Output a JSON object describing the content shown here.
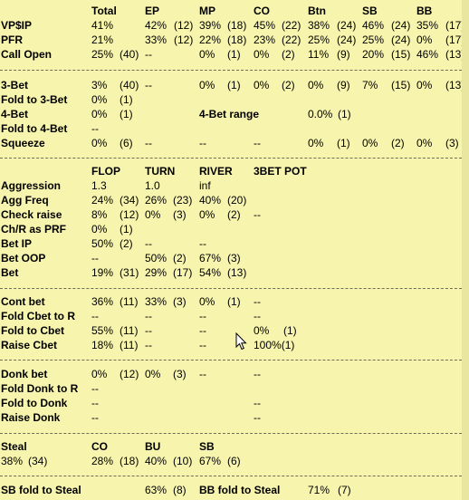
{
  "positions": {
    "headers": [
      "Total",
      "EP",
      "MP",
      "CO",
      "Btn",
      "SB",
      "BB"
    ],
    "rows": [
      {
        "label": "VP$IP",
        "cells": [
          "41%",
          "42%",
          "(12)",
          "39%",
          "(18)",
          "45%",
          "(22)",
          "38%",
          "(24)",
          "46%",
          "(24)",
          "35%",
          "(17)"
        ]
      },
      {
        "label": "PFR",
        "cells": [
          "21%",
          "33%",
          "(12)",
          "22%",
          "(18)",
          "23%",
          "(22)",
          "25%",
          "(24)",
          "25%",
          "(24)",
          "0%",
          "(17)"
        ]
      },
      {
        "label": "Call Open",
        "cells": [
          "25%",
          "(40)",
          "--",
          "0%",
          "(1)",
          "0%",
          "(2)",
          "11%",
          "(9)",
          "20%",
          "(15)",
          "46%",
          "(13)"
        ]
      }
    ]
  },
  "threebet": {
    "bet3": {
      "label": "3-Bet",
      "cells": [
        "3%",
        "(40)",
        "--",
        "0%",
        "(1)",
        "0%",
        "(2)",
        "0%",
        "(9)",
        "7%",
        "(15)",
        "0%",
        "(13)"
      ]
    },
    "fold3": {
      "label": "Fold to 3-Bet",
      "cells": [
        "0%",
        "(1)"
      ]
    },
    "bet4": {
      "label": "4-Bet",
      "cells": [
        "0%",
        "(1)"
      ],
      "range_label": "4-Bet range",
      "range_value": "0.0%",
      "range_count": "(1)"
    },
    "fold4": {
      "label": "Fold to 4-Bet",
      "cells": [
        "--"
      ]
    },
    "squeeze": {
      "label": "Squeeze",
      "cells": [
        "0%",
        "(6)",
        "--",
        "--",
        "--",
        "0%",
        "(1)",
        "0%",
        "(2)",
        "0%",
        "(3)"
      ]
    }
  },
  "postflop": {
    "headers": [
      "FLOP",
      "TURN",
      "RIVER",
      "3BET POT"
    ],
    "rows": [
      {
        "label": "Aggression",
        "cells": [
          "1.3",
          "1.0",
          "inf"
        ]
      },
      {
        "label": "Agg Freq",
        "cells": [
          "24%",
          "(34)",
          "26%",
          "(23)",
          "40%",
          "(20)"
        ]
      },
      {
        "label": "Check raise",
        "cells": [
          "8%",
          "(12)",
          "0%",
          "(3)",
          "0%",
          "(2)",
          "--"
        ]
      },
      {
        "label": "Ch/R as PRF",
        "cells": [
          "0%",
          "(1)"
        ]
      },
      {
        "label": "Bet IP",
        "cells": [
          "50%",
          "(2)",
          "--",
          "--"
        ]
      },
      {
        "label": "Bet OOP",
        "cells": [
          "--",
          "50%",
          "(2)",
          "67%",
          "(3)"
        ]
      },
      {
        "label": "Bet",
        "cells": [
          "19%",
          "(31)",
          "29%",
          "(17)",
          "54%",
          "(13)"
        ]
      }
    ]
  },
  "cbet": {
    "rows": [
      {
        "label": "Cont bet",
        "cells": [
          "36%",
          "(11)",
          "33%",
          "(3)",
          "0%",
          "(1)",
          "--"
        ]
      },
      {
        "label": "Fold Cbet to R",
        "cells": [
          "--",
          "--",
          "--",
          "--"
        ]
      },
      {
        "label": "Fold to Cbet",
        "cells": [
          "55%",
          "(11)",
          "--",
          "--",
          "0%",
          "(1)"
        ]
      },
      {
        "label": "Raise Cbet",
        "cells": [
          "18%",
          "(11)",
          "--",
          "--",
          "100%(1)"
        ]
      }
    ]
  },
  "donk": {
    "rows": [
      {
        "label": "Donk bet",
        "cells": [
          "0%",
          "(12)",
          "0%",
          "(3)",
          "--",
          "--"
        ]
      },
      {
        "label": "Fold Donk to R",
        "cells": [
          "--"
        ]
      },
      {
        "label": "Fold to Donk",
        "cells": [
          "--",
          "--"
        ]
      },
      {
        "label": "Raise Donk",
        "cells": [
          "--",
          "--"
        ]
      }
    ]
  },
  "steal": {
    "label": "Steal",
    "headers": [
      "CO",
      "BU",
      "SB"
    ],
    "cells": [
      "38%",
      "(34)",
      "28%",
      "(18)",
      "40%",
      "(10)",
      "67%",
      "(6)"
    ]
  },
  "blinds": {
    "sb_label": "SB fold to Steal",
    "sb_pct": "63%",
    "sb_count": "(8)",
    "bb_label": "BB fold to Steal",
    "bb_pct": "71%",
    "bb_count": "(7)"
  },
  "colors": {
    "background": "#f7f4ad",
    "text": "#000000",
    "separator": "#6d6d5a"
  },
  "icons": {
    "cursor": "mouse-pointer-icon"
  }
}
